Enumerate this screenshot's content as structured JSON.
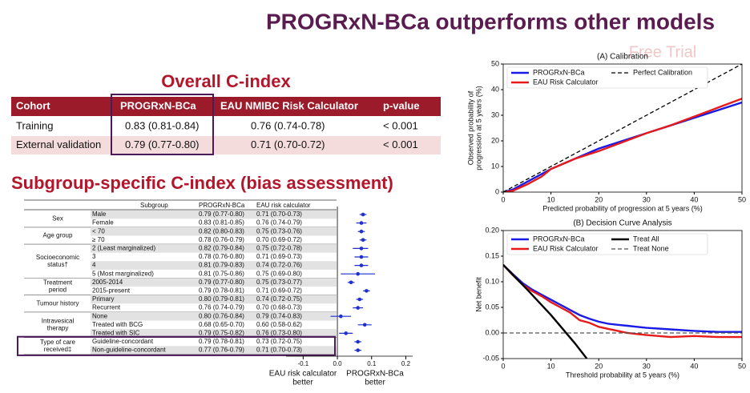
{
  "title": "PROGRxN-BCa outperforms other models",
  "watermark": "Free Trial",
  "overall_table": {
    "title": "Overall C-index",
    "columns": [
      "Cohort",
      "PROGRxN-BCa",
      "EAU NMIBC Risk Calculator",
      "p-value"
    ],
    "rows": [
      [
        "Training",
        "0.83 (0.81-0.84)",
        "0.76 (0.74-0.78)",
        "< 0.001"
      ],
      [
        "External validation",
        "0.79 (0.77-0.80)",
        "0.71 (0.70-0.72)",
        "< 0.001"
      ]
    ]
  },
  "subgroup_table": {
    "title": "Subgroup-specific C-index (bias assessment)",
    "columns": [
      "Subgroup",
      "PROGRxN-BCa",
      "EAU risk calculator"
    ],
    "groups": [
      {
        "label": [
          "Sex"
        ],
        "rows": [
          [
            "Male",
            "0.79 (0.77-0.80)",
            "0.71 (0.70-0.73)"
          ],
          [
            "Female",
            "0.83 (0.81-0.85)",
            "0.76 (0.74-0.79)"
          ]
        ]
      },
      {
        "label": [
          "Age group"
        ],
        "rows": [
          [
            "< 70",
            "0.82 (0.80-0.83)",
            "0.75 (0.73-0.76)"
          ],
          [
            "≥ 70",
            "0.78 (0.76-0.79)",
            "0.70 (0.69-0.72)"
          ]
        ]
      },
      {
        "label": [
          "Socioeconomic",
          "status†"
        ],
        "rows": [
          [
            "2 (Least marginalized)",
            "0.82 (0.79-0.84)",
            "0.75 (0.72-0.78)"
          ],
          [
            "3",
            "0.78 (0.76-0.80)",
            "0.71 (0.69-0.73)"
          ],
          [
            "4",
            "0.81 (0.79-0.83)",
            "0.74 (0.72-0.76)"
          ],
          [
            "5 (Most marginalized)",
            "0.81 (0.75-0.86)",
            "0.75 (0.69-0.80)"
          ]
        ]
      },
      {
        "label": [
          "Treatment",
          "period"
        ],
        "rows": [
          [
            "2005-2014",
            "0.79 (0.77-0.80)",
            "0.75 (0.73-0.77)"
          ],
          [
            "2015-present",
            "0.79 (0.78-0.81)",
            "0.71 (0.69-0.72)"
          ]
        ]
      },
      {
        "label": [
          "Tumour history"
        ],
        "rows": [
          [
            "Primary",
            "0.80 (0.79-0.81)",
            "0.74 (0.72-0.75)"
          ],
          [
            "Recurrent",
            "0.76 (0.74-0.79)",
            "0.70 (0.68-0.73)"
          ]
        ]
      },
      {
        "label": [
          "Intravesical",
          "therapy"
        ],
        "rows": [
          [
            "None",
            "0.80 (0.76-0.84)",
            "0.79 (0.74-0.83)"
          ],
          [
            "Treated with BCG",
            "0.68 (0.65-0.70)",
            "0.60 (0.58-0.62)"
          ],
          [
            "Treated with SIC",
            "0.79 (0.75-0.82)",
            "0.76 (0.73-0.80)"
          ]
        ]
      },
      {
        "label": [
          "Type of care",
          "received‡"
        ],
        "rows": [
          [
            "Guideline-concordant",
            "0.79 (0.78-0.81)",
            "0.73 (0.72-0.75)"
          ],
          [
            "Non-guideline-concordant",
            "0.77 (0.76-0.79)",
            "0.71 (0.70-0.73)"
          ]
        ]
      }
    ]
  },
  "chart_data": [
    {
      "type": "forest",
      "color": "#1f2fd0",
      "values": [
        0.075,
        0.07,
        0.07,
        0.075,
        0.07,
        0.07,
        0.07,
        0.06,
        0.04,
        0.085,
        0.065,
        0.06,
        0.01,
        0.08,
        0.025,
        0.06,
        0.06
      ],
      "low": [
        0.065,
        0.055,
        0.06,
        0.065,
        0.045,
        0.05,
        0.05,
        0.01,
        0.03,
        0.075,
        0.055,
        0.045,
        -0.02,
        0.06,
        0.005,
        0.05,
        0.05
      ],
      "high": [
        0.085,
        0.085,
        0.08,
        0.085,
        0.09,
        0.09,
        0.09,
        0.11,
        0.05,
        0.095,
        0.075,
        0.075,
        0.04,
        0.1,
        0.045,
        0.07,
        0.07
      ],
      "xlim": [
        -0.15,
        0.22
      ],
      "xticks": [
        -0.1,
        {
          "value": 0,
          "label": "0.0"
        },
        0.1,
        0.2
      ],
      "xlabels": [
        [
          "EAU risk calculator",
          "better"
        ],
        [
          "PROGRxN-BCa",
          "better"
        ]
      ]
    },
    {
      "type": "line",
      "title": "(A) Calibration",
      "xlabel": "Predicted probability of progression at 5 years (%)",
      "ylabel": [
        "Observed probability of",
        "progression at 5 years (%)"
      ],
      "xlim": [
        0,
        50
      ],
      "ylim": [
        0,
        50
      ],
      "xticks": [
        0,
        10,
        20,
        30,
        40,
        50
      ],
      "yticks": [
        0,
        10,
        20,
        30,
        40,
        50
      ],
      "legend": "upper left",
      "series": [
        {
          "name": "PROGRxN-BCa",
          "color": "#1a1ae6",
          "linestyle": "solid",
          "x": [
            0,
            2,
            5,
            8,
            10,
            15,
            20,
            25,
            30,
            35,
            40,
            45,
            50
          ],
          "values": [
            0,
            1,
            4,
            7,
            9,
            13,
            17,
            20,
            23,
            26,
            29,
            32,
            35
          ]
        },
        {
          "name": "EAU Risk Calculator",
          "color": "#e61a1a",
          "linestyle": "solid",
          "x": [
            0,
            2,
            5,
            8,
            10,
            15,
            20,
            25,
            30,
            35,
            40,
            45,
            50
          ],
          "values": [
            0,
            0.5,
            3,
            6,
            9,
            13,
            16,
            19.5,
            23,
            26,
            29.5,
            33,
            36.5
          ]
        },
        {
          "name": "Perfect Calibration",
          "color": "#000000",
          "linestyle": "dashed",
          "x": [
            0,
            50
          ],
          "values": [
            0,
            50
          ]
        }
      ]
    },
    {
      "type": "line",
      "title": "(B) Decision Curve Analysis",
      "xlabel": "Threshold probability at 5 years (%)",
      "ylabel": [
        "Net benefit"
      ],
      "xlim": [
        0,
        50
      ],
      "ylim": [
        -0.05,
        0.2
      ],
      "xticks": [
        0,
        10,
        20,
        30,
        40,
        50
      ],
      "yticks": [
        -0.05,
        {
          "value": 0,
          "label": "0.00"
        },
        0.05,
        {
          "value": 0.1,
          "label": "0.10"
        },
        0.15,
        {
          "value": 0.2,
          "label": "0.20"
        }
      ],
      "legend": "upper left",
      "series": [
        {
          "name": "PROGRxN-BCa",
          "color": "#1a1ae6",
          "linestyle": "solid",
          "x": [
            0,
            2,
            4,
            6,
            8,
            10,
            12,
            14,
            16,
            18,
            20,
            22,
            24,
            26,
            28,
            30,
            35,
            40,
            45,
            50
          ],
          "values": [
            0.133,
            0.115,
            0.098,
            0.085,
            0.075,
            0.065,
            0.055,
            0.045,
            0.035,
            0.028,
            0.022,
            0.018,
            0.016,
            0.014,
            0.012,
            0.01,
            0.007,
            0.004,
            0.002,
            0.002
          ]
        },
        {
          "name": "EAU Risk Calculator",
          "color": "#e61a1a",
          "linestyle": "solid",
          "x": [
            0,
            2,
            4,
            6,
            8,
            10,
            12,
            14,
            16,
            18,
            20,
            22,
            24,
            26,
            28,
            30,
            35,
            40,
            45,
            50
          ],
          "values": [
            0.133,
            0.113,
            0.095,
            0.082,
            0.072,
            0.06,
            0.05,
            0.04,
            0.025,
            0.02,
            0.012,
            0.008,
            0.004,
            0,
            -0.002,
            -0.004,
            -0.008,
            -0.006,
            -0.008,
            -0.008
          ]
        },
        {
          "name": "Treat All",
          "color": "#000000",
          "linestyle": "solid",
          "x": [
            0,
            5,
            10,
            15,
            17.5
          ],
          "values": [
            0.133,
            0.085,
            0.035,
            -0.02,
            -0.05
          ]
        },
        {
          "name": "Treat None",
          "color": "#555555",
          "linestyle": "dashed",
          "x": [
            0,
            50
          ],
          "values": [
            0,
            0
          ]
        }
      ]
    }
  ]
}
